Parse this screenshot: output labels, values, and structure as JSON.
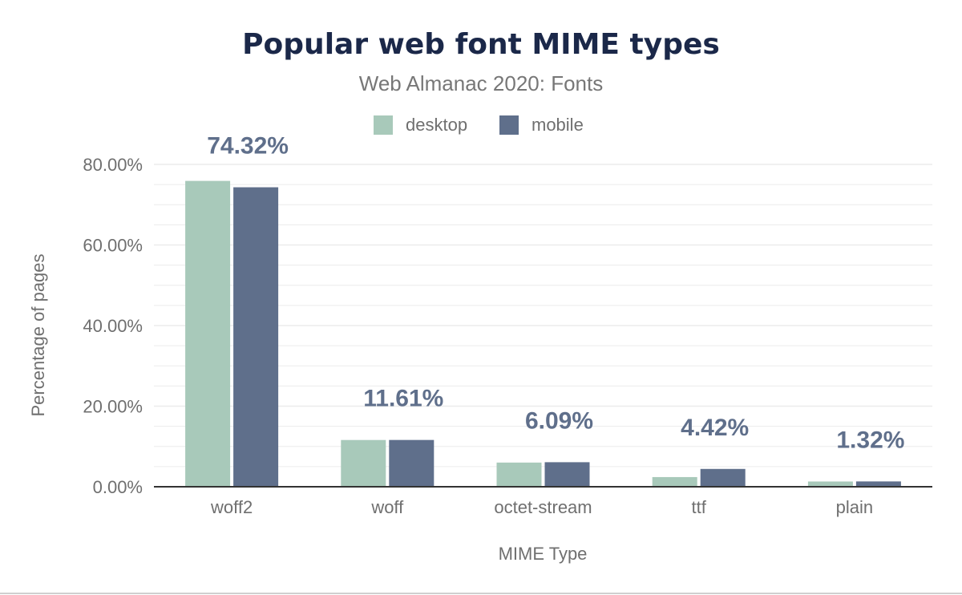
{
  "chart_data": {
    "type": "bar",
    "title": "Popular web font MIME types",
    "subtitle": "Web Almanac 2020: Fonts",
    "xlabel": "MIME Type",
    "ylabel": "Percentage of pages",
    "categories": [
      "woff2",
      "woff",
      "octet-stream",
      "ttf",
      "plain"
    ],
    "series": [
      {
        "name": "desktop",
        "color": "#a8c9ba",
        "values": [
          75.9,
          11.6,
          6.0,
          2.4,
          1.3
        ]
      },
      {
        "name": "mobile",
        "color": "#5f6f8b",
        "values": [
          74.32,
          11.61,
          6.09,
          4.42,
          1.32
        ]
      }
    ],
    "data_labels": [
      "74.32%",
      "11.61%",
      "6.09%",
      "4.42%",
      "1.32%"
    ],
    "data_label_series": "mobile",
    "yticks": [
      0,
      20,
      40,
      60,
      80
    ],
    "ytick_labels": [
      "0.00%",
      "20.00%",
      "40.00%",
      "60.00%",
      "80.00%"
    ],
    "ylim": [
      0,
      80
    ],
    "grid": true,
    "legend_position": "top-center",
    "colors": {
      "title": "#1b2849",
      "subtitle": "#777777",
      "text": "#6f6f6f",
      "data_label": "#5f6f8b",
      "grid": "#ececec",
      "axis": "#333333"
    }
  }
}
